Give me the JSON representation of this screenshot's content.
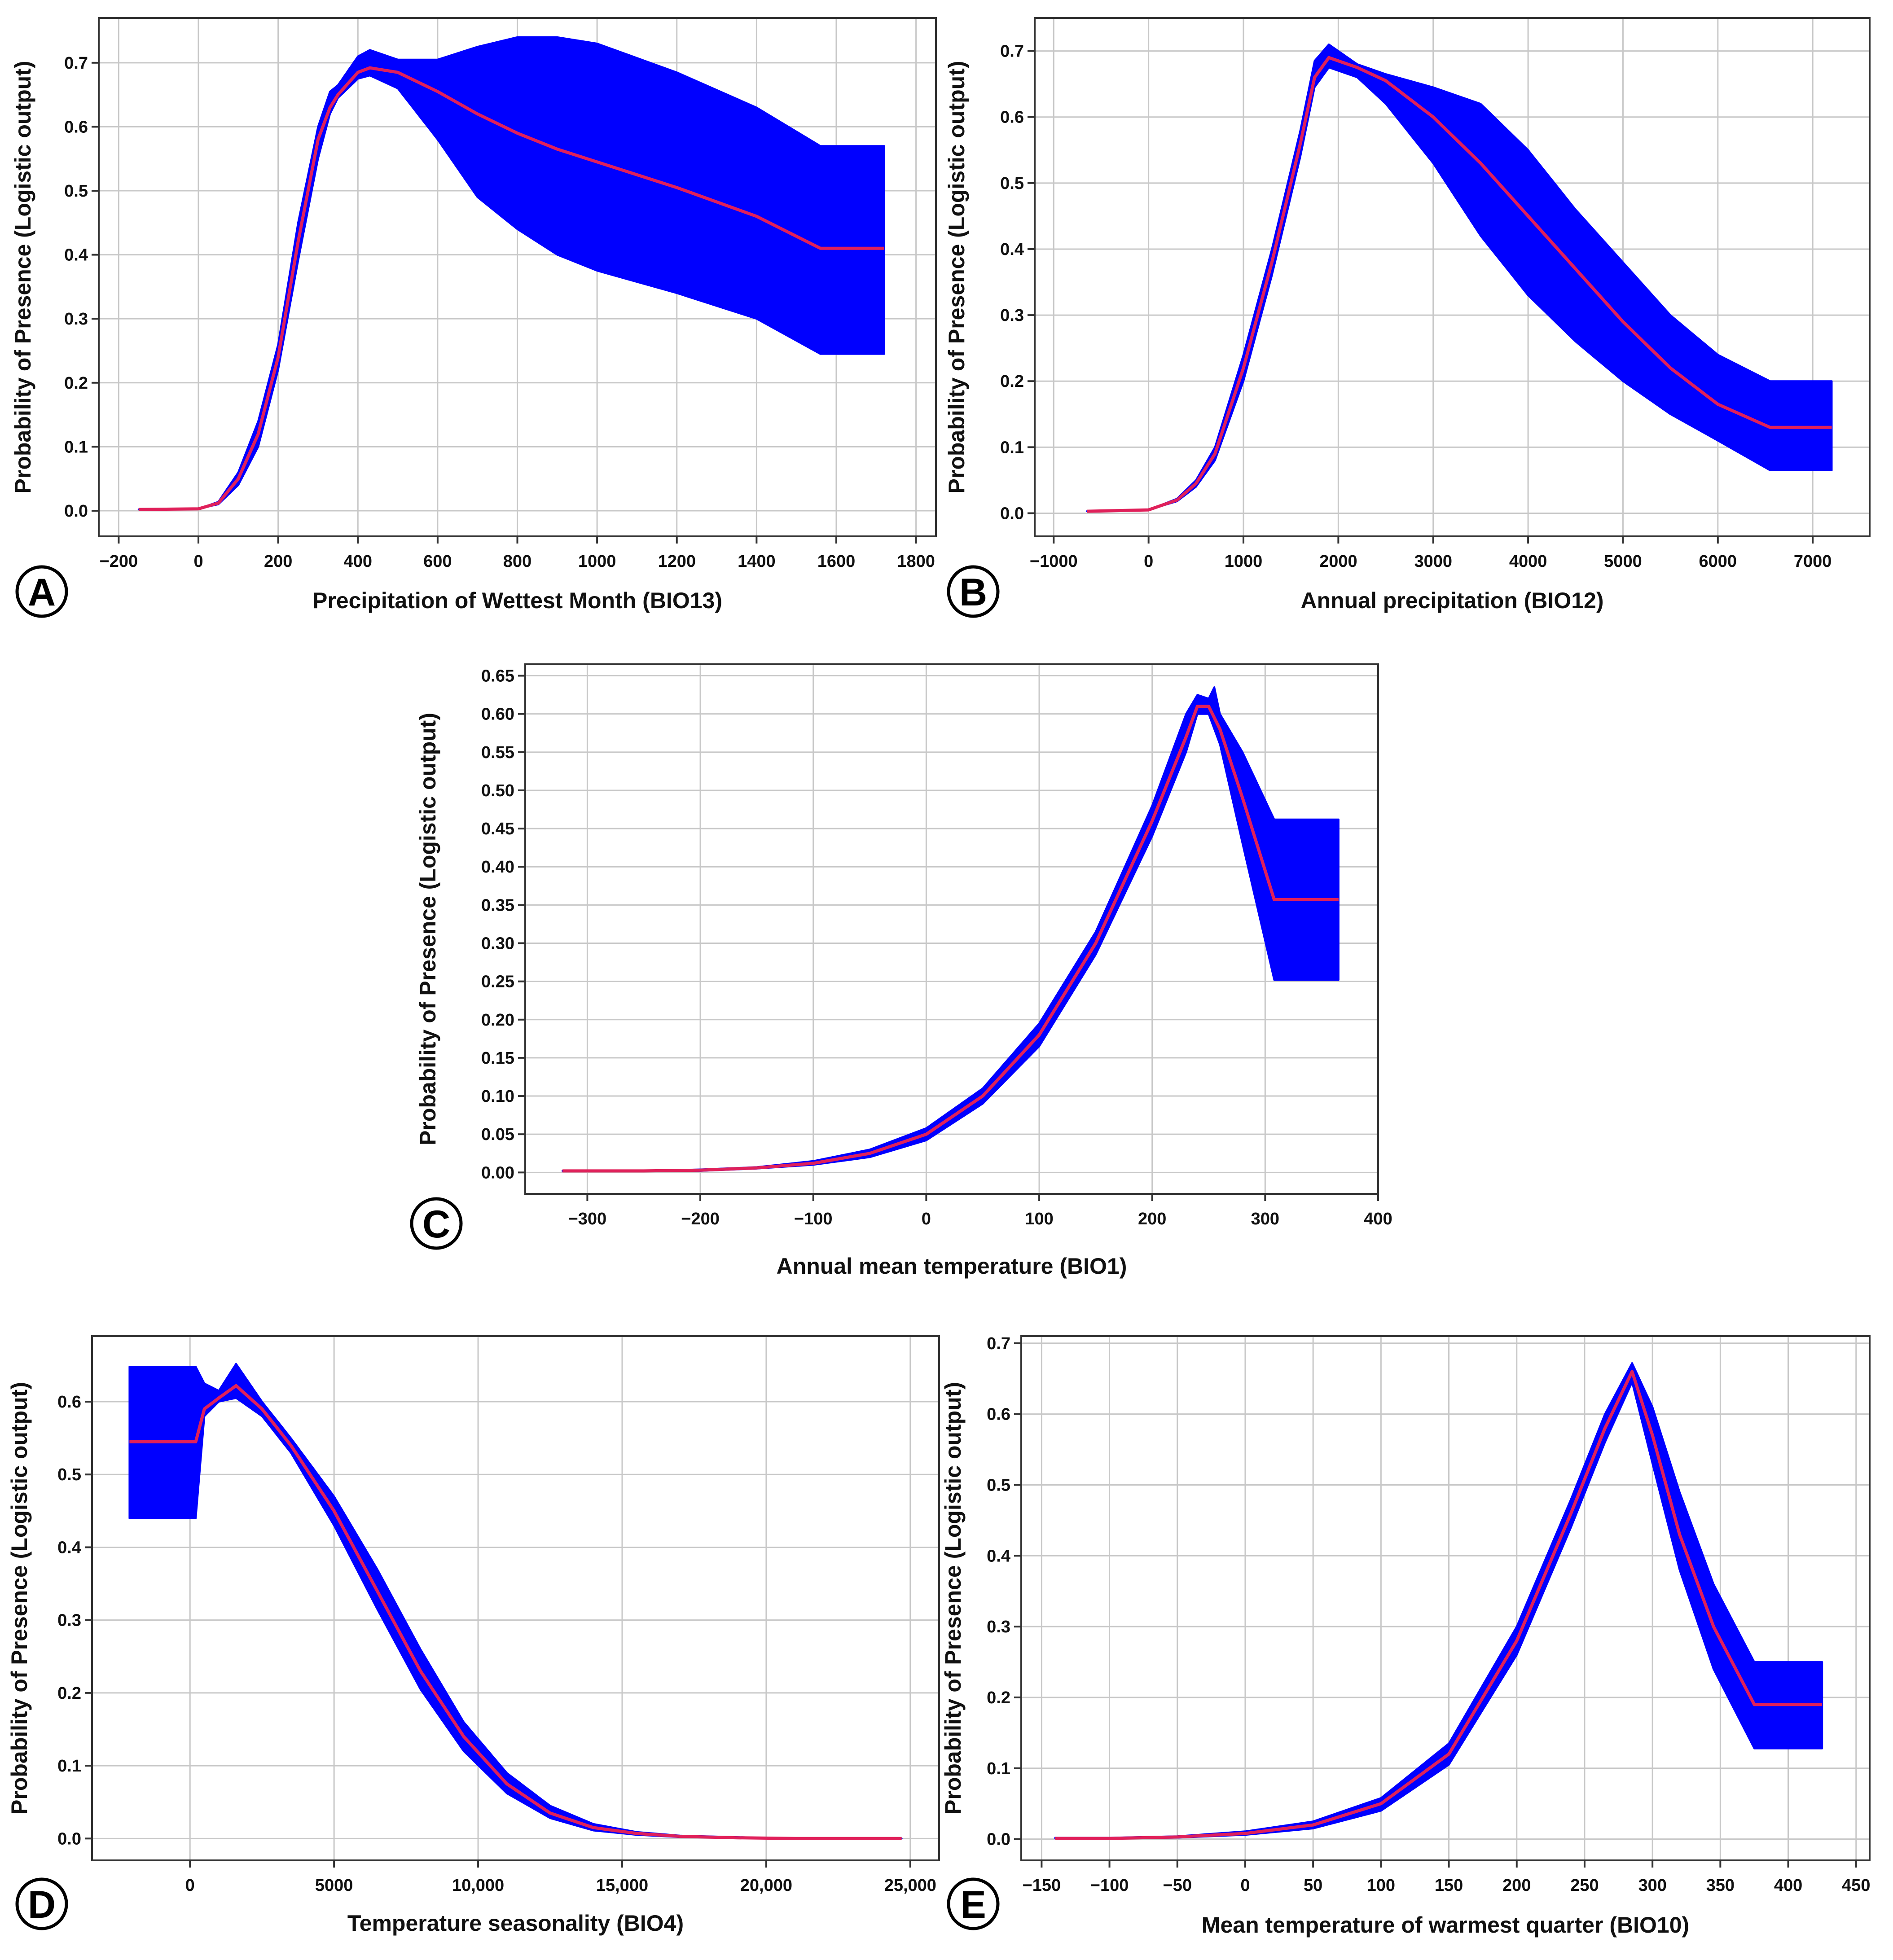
{
  "colors": {
    "band": "#0000ff",
    "mean_line": "#e0205a",
    "grid": "#c8c8c8",
    "frame": "#333333"
  },
  "chart_data": [
    {
      "panel": "A",
      "type": "area",
      "xlabel": "Precipitation of Wettest Month (BIO13)",
      "ylabel": "Probability of Presence (Logistic output)",
      "xlim": [
        -250,
        1850
      ],
      "ylim": [
        -0.04,
        0.77
      ],
      "xticks": [
        -200,
        0,
        200,
        400,
        600,
        800,
        1000,
        1200,
        1400,
        1600,
        1800
      ],
      "xtick_labels": [
        "−200",
        "0",
        "200",
        "400",
        "600",
        "800",
        "1000",
        "1200",
        "1400",
        "1600",
        "1800"
      ],
      "yticks": [
        0,
        0.1,
        0.2,
        0.3,
        0.4,
        0.5,
        0.6,
        0.7
      ],
      "ytick_labels": [
        "0.0",
        "0.1",
        "0.2",
        "0.3",
        "0.4",
        "0.5",
        "0.6",
        "0.7"
      ],
      "series": [
        {
          "name": "mean",
          "x": [
            -150,
            0,
            50,
            100,
            150,
            200,
            250,
            300,
            330,
            350,
            400,
            430,
            500,
            600,
            700,
            800,
            900,
            1000,
            1200,
            1400,
            1560,
            1720
          ],
          "values": [
            0.002,
            0.003,
            0.012,
            0.05,
            0.12,
            0.24,
            0.42,
            0.58,
            0.63,
            0.65,
            0.685,
            0.692,
            0.685,
            0.655,
            0.62,
            0.59,
            0.565,
            0.545,
            0.505,
            0.46,
            0.41,
            0.41
          ]
        },
        {
          "name": "upper",
          "x": [
            -150,
            0,
            50,
            100,
            150,
            200,
            250,
            300,
            330,
            350,
            400,
            430,
            500,
            600,
            700,
            800,
            900,
            1000,
            1200,
            1400,
            1560,
            1560,
            1720
          ],
          "values": [
            0.002,
            0.003,
            0.014,
            0.06,
            0.14,
            0.26,
            0.45,
            0.6,
            0.655,
            0.665,
            0.71,
            0.72,
            0.705,
            0.705,
            0.725,
            0.74,
            0.74,
            0.73,
            0.685,
            0.63,
            0.57,
            0.57,
            0.57
          ]
        },
        {
          "name": "lower",
          "x": [
            -150,
            0,
            50,
            100,
            150,
            200,
            250,
            300,
            330,
            350,
            400,
            430,
            500,
            600,
            700,
            800,
            900,
            1000,
            1200,
            1400,
            1560,
            1560,
            1720
          ],
          "values": [
            0.002,
            0.003,
            0.01,
            0.04,
            0.1,
            0.22,
            0.39,
            0.55,
            0.62,
            0.645,
            0.675,
            0.68,
            0.66,
            0.58,
            0.49,
            0.44,
            0.4,
            0.375,
            0.34,
            0.3,
            0.245,
            0.245,
            0.245
          ]
        }
      ]
    },
    {
      "panel": "B",
      "type": "area",
      "xlabel": "Annual precipitation (BIO12)",
      "ylabel": "Probability of Presence (Logistic output)",
      "xlim": [
        -1200,
        7600
      ],
      "ylim": [
        -0.035,
        0.75
      ],
      "xticks": [
        -1000,
        0,
        1000,
        2000,
        3000,
        4000,
        5000,
        6000,
        7000
      ],
      "xtick_labels": [
        "−1000",
        "0",
        "1000",
        "2000",
        "3000",
        "4000",
        "5000",
        "6000",
        "7000"
      ],
      "yticks": [
        0,
        0.1,
        0.2,
        0.3,
        0.4,
        0.5,
        0.6,
        0.7
      ],
      "ytick_labels": [
        "0.0",
        "0.1",
        "0.2",
        "0.3",
        "0.4",
        "0.5",
        "0.6",
        "0.7"
      ],
      "series": [
        {
          "name": "mean",
          "x": [
            -650,
            0,
            300,
            500,
            700,
            1000,
            1300,
            1600,
            1750,
            1900,
            2200,
            2500,
            3000,
            3500,
            4000,
            4500,
            5000,
            5500,
            6000,
            6550,
            7200
          ],
          "values": [
            0.003,
            0.005,
            0.02,
            0.045,
            0.09,
            0.22,
            0.38,
            0.56,
            0.66,
            0.69,
            0.675,
            0.655,
            0.6,
            0.53,
            0.45,
            0.37,
            0.29,
            0.22,
            0.165,
            0.13,
            0.13
          ]
        },
        {
          "name": "upper",
          "x": [
            -650,
            0,
            300,
            500,
            700,
            1000,
            1300,
            1600,
            1750,
            1900,
            2200,
            2500,
            3000,
            3500,
            4000,
            4500,
            5000,
            5500,
            6000,
            6550,
            6550,
            7200
          ],
          "values": [
            0.003,
            0.005,
            0.022,
            0.05,
            0.1,
            0.24,
            0.4,
            0.58,
            0.685,
            0.71,
            0.68,
            0.665,
            0.645,
            0.62,
            0.55,
            0.46,
            0.38,
            0.3,
            0.24,
            0.2,
            0.2,
            0.2
          ]
        },
        {
          "name": "lower",
          "x": [
            -650,
            0,
            300,
            500,
            700,
            1000,
            1300,
            1600,
            1750,
            1900,
            2200,
            2500,
            3000,
            3500,
            4000,
            4500,
            5000,
            5500,
            6000,
            6550,
            6550,
            7200
          ],
          "values": [
            0.003,
            0.005,
            0.018,
            0.04,
            0.08,
            0.2,
            0.36,
            0.54,
            0.645,
            0.675,
            0.66,
            0.62,
            0.53,
            0.42,
            0.33,
            0.26,
            0.2,
            0.15,
            0.11,
            0.065,
            0.065,
            0.065
          ]
        }
      ]
    },
    {
      "panel": "C",
      "type": "area",
      "xlabel": "Annual mean temperature (BIO1)",
      "ylabel": "Probability of Presence (Logistic output)",
      "xlim": [
        -355,
        400
      ],
      "ylim": [
        -0.028,
        0.665
      ],
      "xticks": [
        -300,
        -200,
        -100,
        0,
        100,
        200,
        300,
        400
      ],
      "xtick_labels": [
        "−300",
        "−200",
        "−100",
        "0",
        "100",
        "200",
        "300",
        "400"
      ],
      "yticks": [
        0,
        0.05,
        0.1,
        0.15,
        0.2,
        0.25,
        0.3,
        0.35,
        0.4,
        0.45,
        0.5,
        0.55,
        0.6,
        0.65
      ],
      "ytick_labels": [
        "0.00",
        "0.05",
        "0.10",
        "0.15",
        "0.20",
        "0.25",
        "0.30",
        "0.35",
        "0.40",
        "0.45",
        "0.50",
        "0.55",
        "0.60",
        "0.65"
      ],
      "series": [
        {
          "name": "mean",
          "x": [
            -322,
            -250,
            -200,
            -150,
            -100,
            -50,
            0,
            50,
            100,
            150,
            200,
            230,
            240,
            250,
            260,
            280,
            308,
            365
          ],
          "values": [
            0.002,
            0.002,
            0.003,
            0.006,
            0.012,
            0.025,
            0.05,
            0.1,
            0.18,
            0.3,
            0.46,
            0.57,
            0.61,
            0.61,
            0.58,
            0.49,
            0.357,
            0.357
          ]
        },
        {
          "name": "upper",
          "x": [
            -322,
            -250,
            -200,
            -150,
            -100,
            -50,
            0,
            50,
            100,
            150,
            200,
            230,
            240,
            250,
            255,
            260,
            280,
            308,
            308,
            365
          ],
          "values": [
            0.002,
            0.002,
            0.004,
            0.007,
            0.015,
            0.03,
            0.058,
            0.11,
            0.195,
            0.315,
            0.48,
            0.6,
            0.625,
            0.62,
            0.635,
            0.6,
            0.55,
            0.462,
            0.462,
            0.462
          ]
        },
        {
          "name": "lower",
          "x": [
            -322,
            -250,
            -200,
            -150,
            -100,
            -50,
            0,
            50,
            100,
            150,
            200,
            230,
            240,
            250,
            260,
            280,
            308,
            308,
            365
          ],
          "values": [
            0.002,
            0.002,
            0.002,
            0.005,
            0.01,
            0.02,
            0.042,
            0.09,
            0.165,
            0.285,
            0.44,
            0.55,
            0.6,
            0.6,
            0.56,
            0.43,
            0.252,
            0.252,
            0.252
          ]
        }
      ]
    },
    {
      "panel": "D",
      "type": "area",
      "xlabel": "Temperature seasonality (BIO4)",
      "ylabel": "Probability of Presence (Logistic output)",
      "xlim": [
        -3400,
        26000
      ],
      "ylim": [
        -0.03,
        0.69
      ],
      "xticks": [
        0,
        5000,
        10000,
        15000,
        20000,
        25000
      ],
      "xtick_labels": [
        "0",
        "5000",
        "10,000",
        "15,000",
        "20,000",
        "25,000"
      ],
      "yticks": [
        0,
        0.1,
        0.2,
        0.3,
        0.4,
        0.5,
        0.6
      ],
      "ytick_labels": [
        "0.0",
        "0.1",
        "0.2",
        "0.3",
        "0.4",
        "0.5",
        "0.6"
      ],
      "series": [
        {
          "name": "mean",
          "x": [
            -2100,
            200,
            500,
            1000,
            1600,
            2500,
            3500,
            5000,
            6500,
            8000,
            9500,
            11000,
            12500,
            14000,
            15500,
            17000,
            19000,
            21000,
            24700
          ],
          "values": [
            0.545,
            0.545,
            0.59,
            0.605,
            0.622,
            0.59,
            0.54,
            0.45,
            0.34,
            0.23,
            0.14,
            0.075,
            0.035,
            0.015,
            0.007,
            0.003,
            0.001,
            0.0,
            0.0
          ]
        },
        {
          "name": "upper",
          "x": [
            -2100,
            200,
            500,
            1000,
            1600,
            2500,
            3500,
            5000,
            6500,
            8000,
            9500,
            11000,
            12500,
            14000,
            15500,
            17000,
            19000,
            21000,
            24700
          ],
          "values": [
            0.648,
            0.648,
            0.625,
            0.615,
            0.652,
            0.6,
            0.55,
            0.47,
            0.37,
            0.26,
            0.16,
            0.09,
            0.045,
            0.02,
            0.009,
            0.004,
            0.002,
            0.0,
            0.0
          ]
        },
        {
          "name": "lower",
          "x": [
            -2100,
            200,
            500,
            1000,
            1600,
            2500,
            3500,
            5000,
            6500,
            8000,
            9500,
            11000,
            12500,
            14000,
            15500,
            17000,
            19000,
            21000,
            24700
          ],
          "values": [
            0.44,
            0.44,
            0.58,
            0.6,
            0.605,
            0.58,
            0.53,
            0.43,
            0.315,
            0.205,
            0.12,
            0.062,
            0.028,
            0.011,
            0.005,
            0.002,
            0.001,
            0.0,
            0.0
          ]
        }
      ]
    },
    {
      "panel": "E",
      "type": "area",
      "xlabel": "Mean temperature of warmest quarter (BIO10)",
      "ylabel": "Probability of Presence (Logistic output)",
      "xlim": [
        -165,
        460
      ],
      "ylim": [
        -0.03,
        0.71
      ],
      "xticks": [
        -150,
        -100,
        -50,
        0,
        50,
        100,
        150,
        200,
        250,
        300,
        350,
        400,
        450
      ],
      "xtick_labels": [
        "−150",
        "−100",
        "−50",
        "0",
        "50",
        "100",
        "150",
        "200",
        "250",
        "300",
        "350",
        "400",
        "450"
      ],
      "yticks": [
        0,
        0.1,
        0.2,
        0.3,
        0.4,
        0.5,
        0.6,
        0.7
      ],
      "ytick_labels": [
        "0.0",
        "0.1",
        "0.2",
        "0.3",
        "0.4",
        "0.5",
        "0.6",
        "0.7"
      ],
      "series": [
        {
          "name": "mean",
          "x": [
            -140,
            -100,
            -50,
            0,
            50,
            100,
            150,
            200,
            240,
            265,
            285,
            300,
            320,
            345,
            375,
            425
          ],
          "values": [
            0.001,
            0.001,
            0.003,
            0.008,
            0.02,
            0.05,
            0.12,
            0.28,
            0.46,
            0.58,
            0.66,
            0.57,
            0.43,
            0.3,
            0.19,
            0.19
          ]
        },
        {
          "name": "upper",
          "x": [
            -140,
            -100,
            -50,
            0,
            50,
            100,
            150,
            200,
            240,
            265,
            285,
            300,
            320,
            345,
            375,
            375,
            425
          ],
          "values": [
            0.002,
            0.002,
            0.004,
            0.011,
            0.025,
            0.058,
            0.135,
            0.3,
            0.48,
            0.6,
            0.672,
            0.61,
            0.49,
            0.36,
            0.25,
            0.25,
            0.25
          ]
        },
        {
          "name": "lower",
          "x": [
            -140,
            -100,
            -50,
            0,
            50,
            100,
            150,
            200,
            240,
            265,
            285,
            300,
            320,
            345,
            375,
            375,
            425
          ],
          "values": [
            0.001,
            0.001,
            0.002,
            0.006,
            0.015,
            0.04,
            0.105,
            0.26,
            0.44,
            0.56,
            0.645,
            0.53,
            0.38,
            0.24,
            0.128,
            0.128,
            0.128
          ]
        }
      ]
    }
  ]
}
